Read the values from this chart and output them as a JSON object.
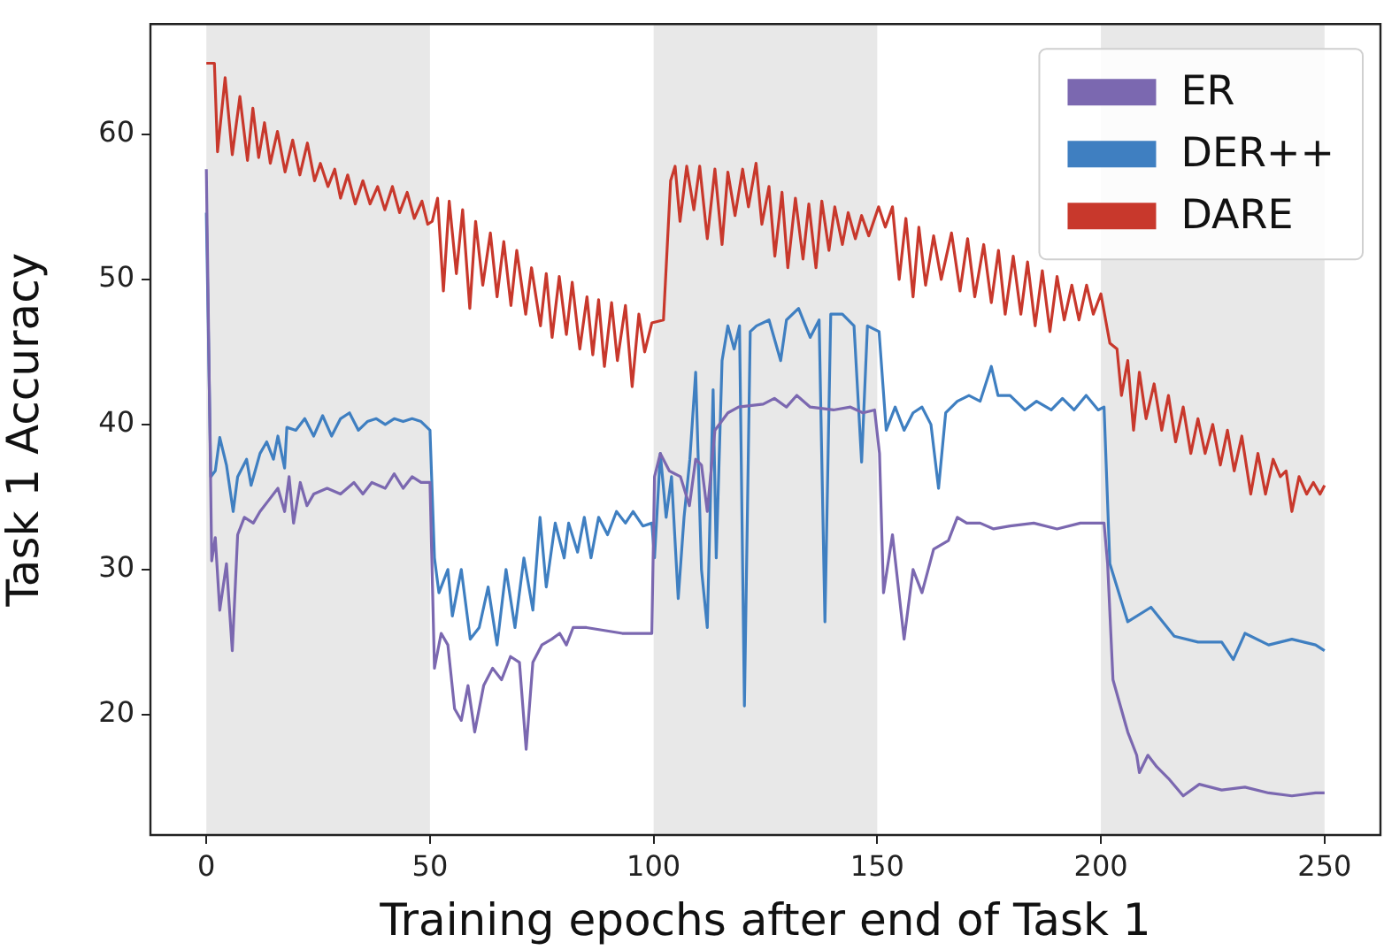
{
  "chart_data": {
    "type": "line",
    "xlabel": "Training epochs after end of Task 1",
    "ylabel": "Task 1 Accuracy",
    "xlim": [
      -12.5,
      262.5
    ],
    "xticks": [
      0,
      50,
      100,
      150,
      200,
      250
    ],
    "ylim": [
      11.7,
      67.6
    ],
    "yticks": [
      20,
      30,
      40,
      50,
      60
    ],
    "grid": false,
    "legend": "top right",
    "marker": "none",
    "line_style": "solid",
    "bands": [
      {
        "axis": "x",
        "from": 0,
        "to": 50,
        "color": "#e8e8e8"
      },
      {
        "axis": "x",
        "from": 100,
        "to": 150,
        "color": "#e8e8e8"
      },
      {
        "axis": "x",
        "from": 200,
        "to": 250,
        "color": "#e8e8e8"
      }
    ],
    "series": [
      {
        "name": "ER",
        "color": "#7b68b0",
        "x": [
          0,
          1.2,
          2,
          3,
          4.5,
          5.8,
          7,
          8.5,
          10.5,
          12,
          14,
          16,
          17.5,
          18.5,
          19.5,
          21,
          22.5,
          24,
          27,
          30,
          33,
          35,
          37,
          40,
          42,
          44,
          46,
          48,
          50,
          51,
          52.5,
          54,
          55.5,
          57,
          58.5,
          60,
          62,
          64,
          66,
          68,
          70,
          71.5,
          73,
          75,
          77.2,
          79,
          80.5,
          82,
          85,
          89,
          93,
          97,
          99.6,
          100.2,
          101.5,
          103.5,
          106,
          108,
          109.4,
          110.7,
          112,
          113.7,
          116.6,
          119,
          124.5,
          127,
          129.7,
          132,
          135,
          140.2,
          144,
          146.8,
          149.4,
          150.5,
          151.4,
          153.4,
          156,
          158,
          160,
          162.6,
          165.9,
          167.9,
          170,
          173,
          176,
          179.7,
          185,
          190.2,
          195.4,
          200.7,
          201.5,
          202.7,
          206,
          208,
          208.6,
          210.5,
          212.5,
          215.1,
          218.4,
          222,
          227,
          232.2,
          237.5,
          242.7,
          248,
          250
        ],
        "values": [
          57.6,
          30.6,
          32.2,
          27.2,
          30.4,
          24.4,
          32.4,
          33.6,
          33.2,
          34.0,
          34.8,
          35.6,
          34.0,
          36.4,
          33.2,
          36.0,
          34.4,
          35.2,
          35.6,
          35.2,
          36.0,
          35.2,
          36.0,
          35.6,
          36.6,
          35.6,
          36.4,
          36.0,
          36.0,
          23.2,
          25.6,
          24.8,
          20.4,
          19.6,
          22.0,
          18.8,
          22.0,
          23.2,
          22.4,
          24.0,
          23.6,
          17.6,
          23.6,
          24.8,
          25.2,
          25.6,
          24.8,
          26.0,
          26.0,
          25.8,
          25.6,
          25.6,
          25.6,
          36.4,
          38.0,
          36.8,
          36.4,
          34.4,
          37.6,
          37.2,
          34.0,
          39.6,
          40.8,
          41.2,
          41.4,
          41.8,
          41.2,
          42.0,
          41.2,
          41.0,
          41.2,
          40.8,
          41.0,
          38.0,
          28.4,
          32.4,
          25.2,
          30.0,
          28.4,
          31.4,
          32.0,
          33.6,
          33.2,
          33.2,
          32.8,
          33.0,
          33.2,
          32.8,
          33.2,
          33.2,
          30.4,
          22.4,
          18.8,
          17.2,
          16.0,
          17.2,
          16.4,
          15.6,
          14.4,
          15.2,
          14.8,
          15.0,
          14.6,
          14.4,
          14.6,
          14.6
        ]
      },
      {
        "name": "DER++",
        "color": "#3f7fc1",
        "x": [
          0,
          1,
          2,
          3,
          4.5,
          6,
          7,
          9,
          10,
          12,
          13.5,
          15,
          16,
          17.5,
          18,
          20,
          22,
          24,
          26,
          28,
          30,
          32,
          34,
          36,
          38,
          40,
          42,
          44,
          46,
          48,
          50,
          51,
          52,
          54,
          55,
          57,
          59,
          61,
          63,
          65,
          67,
          69,
          71,
          73,
          74.6,
          76,
          78,
          80,
          81,
          83,
          84.5,
          86,
          87.7,
          89.7,
          91.7,
          93.7,
          95.4,
          97.6,
          99.6,
          100.2,
          101.5,
          102.8,
          104,
          105.5,
          106.8,
          108.1,
          109.4,
          110.7,
          112,
          113.3,
          114,
          115.3,
          116.6,
          118,
          119.2,
          120.3,
          121.6,
          123,
          125.8,
          128.4,
          129.7,
          132.4,
          135,
          137,
          138.3,
          139.6,
          142.2,
          144.8,
          146.5,
          147.8,
          150.4,
          152,
          154,
          156,
          158,
          160,
          162,
          163.7,
          165.3,
          167.9,
          170.5,
          173,
          175.5,
          177,
          179.7,
          183,
          185.6,
          188.9,
          191.4,
          194,
          196.7,
          199.4,
          200.7,
          202,
          206,
          211.2,
          216.4,
          221.7,
          227,
          229.6,
          232.2,
          237.5,
          242.7,
          248,
          250
        ],
        "values": [
          54.6,
          36.4,
          36.8,
          39.1,
          37.2,
          34.0,
          36.4,
          37.6,
          35.8,
          38.0,
          38.8,
          37.6,
          39.2,
          37.0,
          39.8,
          39.6,
          40.4,
          39.2,
          40.6,
          39.2,
          40.4,
          40.8,
          39.6,
          40.2,
          40.4,
          40.0,
          40.4,
          40.2,
          40.4,
          40.2,
          39.6,
          30.8,
          28.4,
          30.0,
          26.8,
          30.0,
          25.2,
          26.0,
          28.8,
          24.8,
          30.0,
          26.0,
          30.8,
          27.2,
          33.6,
          28.8,
          33.2,
          30.8,
          33.2,
          31.2,
          33.6,
          30.8,
          33.6,
          32.4,
          34.0,
          33.2,
          34.0,
          33.0,
          33.2,
          30.8,
          38.0,
          33.6,
          36.4,
          28.0,
          33.6,
          37.6,
          43.6,
          30.0,
          26.0,
          42.4,
          30.8,
          44.4,
          46.8,
          45.2,
          46.8,
          20.6,
          46.4,
          46.8,
          47.2,
          44.4,
          47.2,
          48.0,
          46.0,
          47.2,
          26.4,
          47.6,
          47.6,
          46.8,
          37.4,
          46.8,
          46.4,
          39.6,
          41.2,
          39.6,
          40.8,
          41.2,
          40.0,
          35.6,
          40.8,
          41.6,
          42.0,
          41.6,
          44.0,
          42.0,
          42.0,
          41.0,
          41.6,
          41.0,
          41.8,
          41.0,
          42.0,
          41.0,
          41.2,
          30.4,
          26.4,
          27.4,
          25.4,
          25.0,
          25.0,
          23.8,
          25.6,
          24.8,
          25.2,
          24.8,
          24.4
        ]
      },
      {
        "name": "DARE",
        "color": "#c8382c",
        "x": [
          0,
          1.8,
          2.5,
          4.2,
          5.8,
          7.5,
          9.2,
          10.4,
          11.7,
          13,
          14.3,
          15.9,
          17.6,
          19.3,
          20.9,
          22.6,
          24.2,
          25.5,
          27.2,
          28.7,
          30,
          31.6,
          33.3,
          35,
          36.6,
          38.3,
          39.9,
          41.6,
          43.2,
          44.9,
          46.5,
          48.2,
          49.5,
          50.5,
          51.7,
          53,
          54.3,
          55.9,
          57.3,
          58.9,
          60.2,
          61.8,
          63.5,
          65,
          66.5,
          68.1,
          69.4,
          71.4,
          72.7,
          74.7,
          76,
          77.3,
          78.9,
          80.5,
          81.8,
          83.5,
          85.1,
          86.4,
          87.7,
          89,
          90.6,
          91.9,
          93.7,
          95.2,
          96.7,
          98,
          99.6,
          102.2,
          103.8,
          104.8,
          105.9,
          107.4,
          109,
          110.3,
          112,
          113.7,
          115.3,
          116.6,
          118.2,
          119.9,
          121.2,
          122.9,
          124.2,
          125.8,
          127.1,
          128.7,
          130,
          131.7,
          133.4,
          134.7,
          136.3,
          137.6,
          139.2,
          140.5,
          142.2,
          143.5,
          145.1,
          146.5,
          148.1,
          150.3,
          151.8,
          153.4,
          154.9,
          156.4,
          158,
          159.3,
          160.8,
          162.6,
          164.3,
          166.6,
          168.5,
          170.2,
          171.8,
          173.8,
          175.5,
          177.1,
          178.6,
          180.4,
          182.1,
          183.6,
          185.3,
          186.9,
          188.6,
          190.2,
          191.8,
          193.5,
          195.1,
          196.8,
          198.3,
          200,
          202,
          203.6,
          204.6,
          206,
          207.3,
          208.6,
          210.1,
          211.9,
          213.6,
          215.1,
          216.7,
          218.4,
          220.1,
          221.7,
          223.3,
          225,
          226.7,
          228.3,
          229.8,
          231.5,
          233.5,
          235.1,
          236.8,
          238.5,
          240.1,
          241.4,
          242.7,
          244.3,
          246,
          247.5,
          249,
          250
        ],
        "values": [
          64.9,
          64.9,
          58.8,
          63.9,
          58.6,
          62.6,
          58.2,
          61.8,
          58.4,
          60.8,
          58.0,
          60.2,
          57.4,
          59.6,
          57.2,
          59.4,
          56.8,
          58.0,
          56.4,
          57.6,
          55.6,
          57.2,
          55.2,
          56.8,
          55.2,
          56.4,
          54.8,
          56.4,
          54.6,
          56.0,
          54.2,
          55.4,
          53.8,
          54.0,
          55.6,
          49.2,
          55.4,
          50.4,
          54.8,
          48.0,
          54.0,
          49.6,
          53.2,
          48.8,
          52.6,
          48.2,
          52.0,
          47.6,
          50.8,
          46.8,
          50.4,
          46.0,
          50.2,
          46.2,
          49.8,
          45.2,
          48.8,
          44.8,
          48.6,
          44.0,
          48.4,
          44.4,
          48.2,
          42.6,
          47.6,
          45.0,
          47.0,
          47.2,
          56.8,
          57.8,
          54.0,
          57.8,
          54.8,
          57.8,
          52.8,
          57.6,
          52.4,
          57.4,
          54.4,
          57.6,
          55.0,
          58.0,
          53.8,
          56.4,
          51.6,
          56.0,
          50.8,
          55.6,
          51.4,
          55.2,
          50.8,
          55.4,
          52.0,
          55.0,
          52.4,
          54.6,
          52.8,
          54.4,
          53.0,
          55.0,
          53.6,
          55.0,
          50.0,
          54.2,
          48.8,
          53.6,
          49.6,
          53.0,
          50.0,
          53.2,
          49.2,
          52.8,
          48.8,
          52.4,
          48.4,
          52.0,
          47.6,
          51.6,
          47.6,
          51.2,
          46.8,
          50.6,
          46.4,
          50.2,
          47.2,
          49.6,
          47.2,
          49.6,
          47.6,
          49.0,
          45.6,
          45.2,
          42.0,
          44.4,
          39.6,
          43.6,
          40.4,
          42.8,
          39.6,
          42.0,
          38.8,
          41.2,
          38.0,
          40.4,
          38.0,
          40.0,
          37.2,
          39.6,
          36.8,
          39.2,
          35.2,
          38.0,
          35.2,
          37.6,
          36.4,
          36.8,
          34.0,
          36.4,
          35.2,
          36.0,
          35.2,
          35.8
        ]
      }
    ]
  }
}
